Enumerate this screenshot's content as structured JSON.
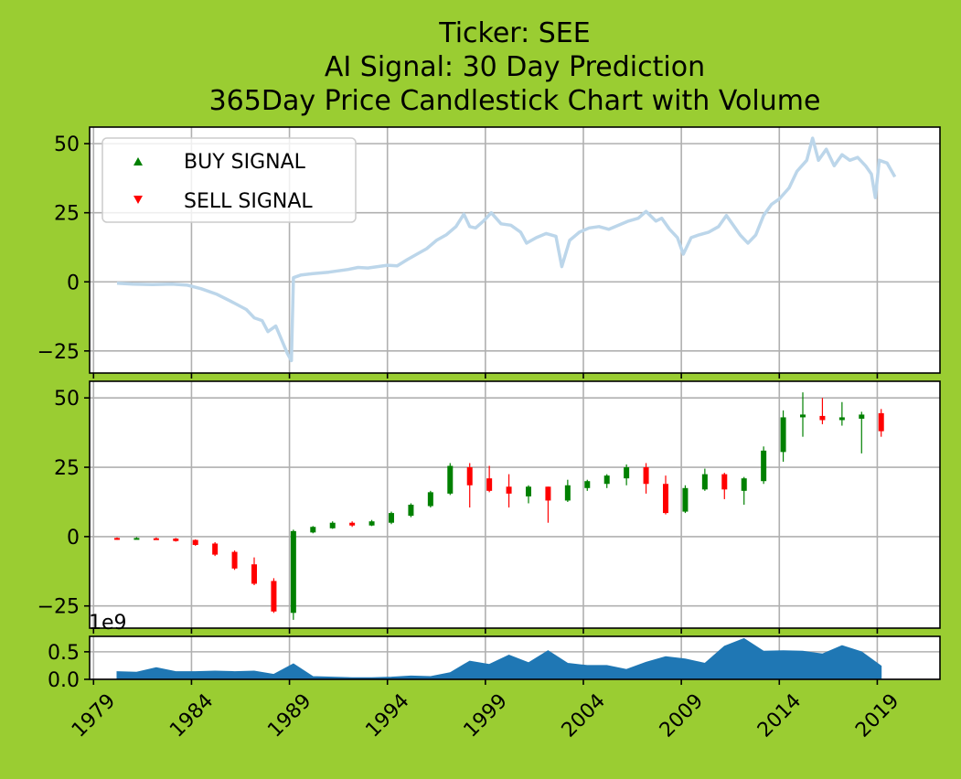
{
  "chart_data": {
    "type": "candlestick",
    "title_lines": [
      "Ticker: SEE",
      "AI Signal: 30 Day Prediction",
      "365Day Price Candlestick Chart with Volume"
    ],
    "colors": {
      "background": "#9acd32",
      "price_line": "#bcd6ea",
      "up": "#008000",
      "down": "#ff0000",
      "volume": "#1f77b4"
    },
    "legend": {
      "placement": "upper-left",
      "items": [
        {
          "label": "BUY SIGNAL",
          "marker": "triangle-up",
          "color": "#008000"
        },
        {
          "label": "SELL SIGNAL",
          "marker": "triangle-down",
          "color": "#ff0000"
        }
      ]
    },
    "x_ticks": [
      "1979",
      "1984",
      "1989",
      "1994",
      "1999",
      "2004",
      "2009",
      "2014",
      "2019"
    ],
    "x_range": [
      1978.8,
      2022.2
    ],
    "price_y_ticks": [
      "50",
      "25",
      "0",
      "−25"
    ],
    "price_y_tick_values": [
      50,
      25,
      0,
      -25
    ],
    "price_ylim": [
      -33,
      56
    ],
    "volume_y_ticks": [
      "0.5",
      "0.0"
    ],
    "volume_y_tick_values": [
      0.5,
      0.0
    ],
    "volume_ylim": [
      0,
      0.78
    ],
    "volume_exponent_label": "1e9",
    "price_line": [
      [
        1980.2,
        -0.5
      ],
      [
        1981.0,
        -0.8
      ],
      [
        1982.0,
        -1.0
      ],
      [
        1983.0,
        -0.8
      ],
      [
        1983.8,
        -1.2
      ],
      [
        1984.5,
        -2.5
      ],
      [
        1985.3,
        -4.5
      ],
      [
        1986.0,
        -7.0
      ],
      [
        1986.8,
        -10.0
      ],
      [
        1987.2,
        -13.0
      ],
      [
        1987.6,
        -14.0
      ],
      [
        1987.9,
        -18.0
      ],
      [
        1988.3,
        -16.0
      ],
      [
        1988.6,
        -21.0
      ],
      [
        1988.9,
        -26.0
      ],
      [
        1989.1,
        -28.5
      ],
      [
        1989.2,
        1.5
      ],
      [
        1989.6,
        2.5
      ],
      [
        1990.2,
        3.0
      ],
      [
        1991.0,
        3.5
      ],
      [
        1991.5,
        4.0
      ],
      [
        1992.0,
        4.5
      ],
      [
        1992.5,
        5.2
      ],
      [
        1993.0,
        5.0
      ],
      [
        1993.5,
        5.5
      ],
      [
        1994.0,
        6.0
      ],
      [
        1994.5,
        5.8
      ],
      [
        1995.0,
        8.0
      ],
      [
        1995.5,
        10.0
      ],
      [
        1996.0,
        12.0
      ],
      [
        1996.5,
        15.0
      ],
      [
        1997.0,
        17.0
      ],
      [
        1997.5,
        20.0
      ],
      [
        1997.9,
        24.5
      ],
      [
        1998.2,
        20.0
      ],
      [
        1998.5,
        19.5
      ],
      [
        1998.9,
        22.0
      ],
      [
        1999.3,
        25.0
      ],
      [
        1999.8,
        21.0
      ],
      [
        2000.3,
        20.5
      ],
      [
        2000.8,
        18.0
      ],
      [
        2001.1,
        14.0
      ],
      [
        2001.6,
        16.0
      ],
      [
        2002.1,
        17.5
      ],
      [
        2002.6,
        16.5
      ],
      [
        2002.9,
        5.5
      ],
      [
        2003.3,
        15.0
      ],
      [
        2003.8,
        18.0
      ],
      [
        2004.3,
        19.5
      ],
      [
        2004.8,
        20.0
      ],
      [
        2005.3,
        19.0
      ],
      [
        2005.8,
        20.5
      ],
      [
        2006.3,
        22.0
      ],
      [
        2006.8,
        23.0
      ],
      [
        2007.2,
        25.5
      ],
      [
        2007.7,
        22.0
      ],
      [
        2008.0,
        23.0
      ],
      [
        2008.4,
        19.0
      ],
      [
        2008.8,
        16.0
      ],
      [
        2009.1,
        10.0
      ],
      [
        2009.5,
        16.0
      ],
      [
        2009.9,
        17.0
      ],
      [
        2010.4,
        18.0
      ],
      [
        2010.9,
        20.0
      ],
      [
        2011.3,
        24.0
      ],
      [
        2011.6,
        21.0
      ],
      [
        2012.0,
        17.0
      ],
      [
        2012.4,
        14.0
      ],
      [
        2012.8,
        17.0
      ],
      [
        2013.2,
        24.0
      ],
      [
        2013.6,
        28.0
      ],
      [
        2014.0,
        30.0
      ],
      [
        2014.5,
        34.0
      ],
      [
        2014.9,
        40.0
      ],
      [
        2015.4,
        44.0
      ],
      [
        2015.7,
        52.0
      ],
      [
        2016.0,
        44.0
      ],
      [
        2016.4,
        48.0
      ],
      [
        2016.8,
        42.0
      ],
      [
        2017.2,
        46.0
      ],
      [
        2017.6,
        44.0
      ],
      [
        2018.0,
        45.0
      ],
      [
        2018.4,
        42.0
      ],
      [
        2018.7,
        39.0
      ],
      [
        2018.9,
        30.5
      ],
      [
        2019.1,
        44.0
      ],
      [
        2019.5,
        43.0
      ],
      [
        2019.9,
        38.0
      ]
    ],
    "candles": [
      {
        "x": 1980.2,
        "open": -0.5,
        "close": -1.0,
        "high": -0.3,
        "low": -1.2
      },
      {
        "x": 1981.2,
        "open": -0.8,
        "close": -0.5,
        "high": -0.2,
        "low": -1.0
      },
      {
        "x": 1982.2,
        "open": -0.6,
        "close": -1.0,
        "high": -0.3,
        "low": -1.1
      },
      {
        "x": 1983.2,
        "open": -0.7,
        "close": -1.6,
        "high": -0.5,
        "low": -1.8
      },
      {
        "x": 1984.2,
        "open": -1.2,
        "close": -3.0,
        "high": -1.0,
        "low": -3.3
      },
      {
        "x": 1985.2,
        "open": -2.5,
        "close": -6.5,
        "high": -2.0,
        "low": -7.0
      },
      {
        "x": 1986.2,
        "open": -5.5,
        "close": -11.5,
        "high": -5.0,
        "low": -12.0
      },
      {
        "x": 1987.2,
        "open": -10.0,
        "close": -17.0,
        "high": -7.5,
        "low": -17.5
      },
      {
        "x": 1988.2,
        "open": -16.0,
        "close": -27.0,
        "high": -15.0,
        "low": -27.5
      },
      {
        "x": 1989.2,
        "open": -27.5,
        "close": 2.0,
        "high": 2.5,
        "low": -30.0
      },
      {
        "x": 1990.2,
        "open": 1.5,
        "close": 3.5,
        "high": 3.8,
        "low": 1.2
      },
      {
        "x": 1991.2,
        "open": 3.0,
        "close": 5.0,
        "high": 5.5,
        "low": 2.8
      },
      {
        "x": 1992.2,
        "open": 5.0,
        "close": 4.0,
        "high": 5.5,
        "low": 3.5
      },
      {
        "x": 1993.2,
        "open": 4.0,
        "close": 5.5,
        "high": 6.0,
        "low": 3.8
      },
      {
        "x": 1994.2,
        "open": 5.0,
        "close": 8.5,
        "high": 9.0,
        "low": 4.5
      },
      {
        "x": 1995.2,
        "open": 7.5,
        "close": 11.5,
        "high": 12.0,
        "low": 7.0
      },
      {
        "x": 1996.2,
        "open": 11.0,
        "close": 16.0,
        "high": 16.5,
        "low": 10.5
      },
      {
        "x": 1997.2,
        "open": 15.5,
        "close": 25.5,
        "high": 26.5,
        "low": 15.0
      },
      {
        "x": 1998.2,
        "open": 25.0,
        "close": 18.5,
        "high": 26.5,
        "low": 10.5
      },
      {
        "x": 1999.2,
        "open": 21.0,
        "close": 16.5,
        "high": 25.5,
        "low": 16.0
      },
      {
        "x": 2000.2,
        "open": 18.0,
        "close": 15.5,
        "high": 22.5,
        "low": 10.5
      },
      {
        "x": 2001.2,
        "open": 14.5,
        "close": 18.0,
        "high": 18.5,
        "low": 12.0
      },
      {
        "x": 2002.2,
        "open": 18.0,
        "close": 13.0,
        "high": 18.0,
        "low": 5.0
      },
      {
        "x": 2003.2,
        "open": 13.0,
        "close": 18.5,
        "high": 20.5,
        "low": 12.5
      },
      {
        "x": 2004.2,
        "open": 17.5,
        "close": 20.0,
        "high": 20.5,
        "low": 16.5
      },
      {
        "x": 2005.2,
        "open": 19.0,
        "close": 22.0,
        "high": 22.5,
        "low": 17.5
      },
      {
        "x": 2006.2,
        "open": 21.0,
        "close": 25.0,
        "high": 26.0,
        "low": 18.5
      },
      {
        "x": 2007.2,
        "open": 25.0,
        "close": 19.0,
        "high": 26.5,
        "low": 15.5
      },
      {
        "x": 2008.2,
        "open": 19.0,
        "close": 8.5,
        "high": 22.0,
        "low": 8.0
      },
      {
        "x": 2009.2,
        "open": 9.0,
        "close": 17.5,
        "high": 18.5,
        "low": 8.5
      },
      {
        "x": 2010.2,
        "open": 17.0,
        "close": 22.5,
        "high": 24.5,
        "low": 16.5
      },
      {
        "x": 2011.2,
        "open": 22.5,
        "close": 17.0,
        "high": 23.0,
        "low": 13.5
      },
      {
        "x": 2012.2,
        "open": 16.5,
        "close": 21.0,
        "high": 21.5,
        "low": 11.5
      },
      {
        "x": 2013.2,
        "open": 20.0,
        "close": 31.0,
        "high": 32.5,
        "low": 19.0
      },
      {
        "x": 2014.2,
        "open": 30.5,
        "close": 43.0,
        "high": 45.5,
        "low": 27.0
      },
      {
        "x": 2015.2,
        "open": 43.0,
        "close": 44.0,
        "high": 52.0,
        "low": 36.0
      },
      {
        "x": 2016.2,
        "open": 43.5,
        "close": 42.0,
        "high": 50.0,
        "low": 40.5
      },
      {
        "x": 2017.2,
        "open": 42.0,
        "close": 43.0,
        "high": 48.5,
        "low": 40.0
      },
      {
        "x": 2018.2,
        "open": 42.5,
        "close": 44.0,
        "high": 45.0,
        "low": 30.0
      },
      {
        "x": 2019.2,
        "open": 44.5,
        "close": 38.0,
        "high": 46.0,
        "low": 36.0
      }
    ],
    "volume": [
      [
        1980.2,
        0.14
      ],
      [
        1981.2,
        0.13
      ],
      [
        1982.2,
        0.21
      ],
      [
        1983.2,
        0.14
      ],
      [
        1984.2,
        0.14
      ],
      [
        1985.2,
        0.15
      ],
      [
        1986.2,
        0.14
      ],
      [
        1987.2,
        0.15
      ],
      [
        1988.2,
        0.09
      ],
      [
        1989.2,
        0.28
      ],
      [
        1990.2,
        0.05
      ],
      [
        1991.2,
        0.04
      ],
      [
        1992.2,
        0.03
      ],
      [
        1993.2,
        0.03
      ],
      [
        1994.2,
        0.04
      ],
      [
        1995.2,
        0.06
      ],
      [
        1996.2,
        0.05
      ],
      [
        1997.2,
        0.12
      ],
      [
        1998.2,
        0.33
      ],
      [
        1999.2,
        0.27
      ],
      [
        2000.2,
        0.44
      ],
      [
        2001.2,
        0.3
      ],
      [
        2002.2,
        0.52
      ],
      [
        2003.2,
        0.29
      ],
      [
        2004.2,
        0.25
      ],
      [
        2005.2,
        0.25
      ],
      [
        2006.2,
        0.18
      ],
      [
        2007.2,
        0.31
      ],
      [
        2008.2,
        0.41
      ],
      [
        2009.2,
        0.37
      ],
      [
        2010.2,
        0.29
      ],
      [
        2011.2,
        0.6
      ],
      [
        2012.2,
        0.74
      ],
      [
        2013.2,
        0.51
      ],
      [
        2014.2,
        0.52
      ],
      [
        2015.2,
        0.51
      ],
      [
        2016.2,
        0.46
      ],
      [
        2017.2,
        0.61
      ],
      [
        2018.2,
        0.5
      ],
      [
        2019.2,
        0.24
      ]
    ]
  }
}
